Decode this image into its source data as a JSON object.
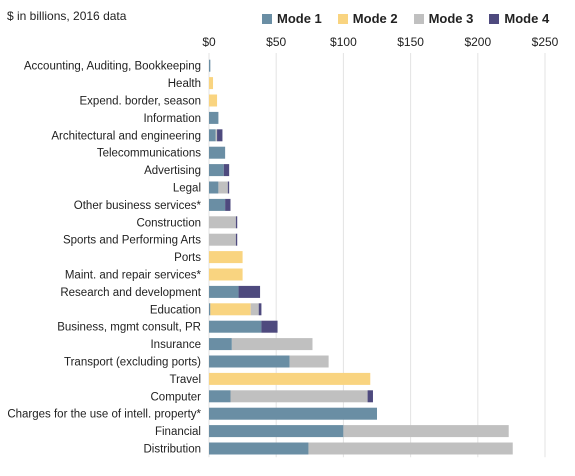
{
  "chart_data": {
    "type": "bar",
    "orientation": "horizontal",
    "stacked": true,
    "title": "",
    "unit_label": "$ in billions, 2016 data",
    "xlim": [
      0,
      250
    ],
    "x_ticks": [
      "$0",
      "$50",
      "$100",
      "$150",
      "$200",
      "$250"
    ],
    "x_tick_values": [
      0,
      50,
      100,
      150,
      200,
      250
    ],
    "grid": true,
    "legend_position": "top",
    "categories": [
      "Accounting, Auditing, Bookkeeping",
      "Health",
      "Expend. border, season",
      "Information",
      "Architectural and engineering",
      "Telecommunications",
      "Advertising",
      "Legal",
      "Other business services*",
      "Construction",
      "Sports and Performing Arts",
      "Ports",
      "Maint. and repair services*",
      "Research and development",
      "Education",
      "Business, mgmt consult, PR",
      "Insurance",
      "Transport (excluding ports)",
      "Travel",
      "Computer",
      "Charges for the use of intell. property*",
      "Financial",
      "Distribution"
    ],
    "series": [
      {
        "name": "Mode 1",
        "color": "#6a8ea4",
        "values": [
          1,
          0,
          0,
          7,
          5,
          12,
          11,
          7,
          12,
          0,
          0,
          0,
          0,
          22,
          1,
          39,
          17,
          60,
          0,
          16,
          125,
          100,
          74
        ]
      },
      {
        "name": "Mode 2",
        "color": "#f9d480",
        "values": [
          0,
          3,
          6,
          0,
          0,
          0,
          0,
          0,
          0,
          0,
          0,
          25,
          25,
          0,
          30,
          0,
          0,
          0,
          120,
          0,
          0,
          0,
          0
        ]
      },
      {
        "name": "Mode 3",
        "color": "#c0c0c0",
        "values": [
          0,
          0,
          0,
          0,
          1,
          0,
          0,
          7,
          0,
          20,
          20,
          0,
          0,
          0,
          6,
          0,
          60,
          29,
          0,
          102,
          0,
          123,
          152
        ]
      },
      {
        "name": "Mode 4",
        "color": "#4e4a7e",
        "values": [
          0,
          0,
          0,
          0,
          4,
          0,
          4,
          1,
          4,
          1,
          1,
          0,
          0,
          16,
          2,
          12,
          0,
          0,
          0,
          4,
          0,
          0,
          0
        ]
      }
    ]
  }
}
